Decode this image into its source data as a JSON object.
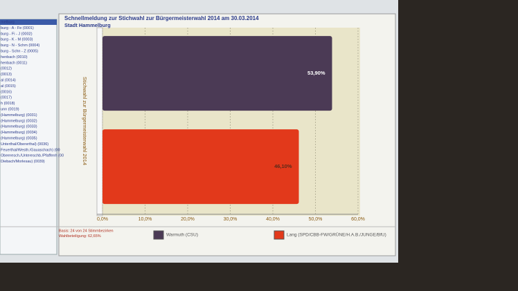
{
  "sidebar": {
    "items": [
      "melburg",
      "burg - A - Fe (0001)",
      "burg - Fi - J (0002)",
      "burg - K - M (0003)",
      "burg - N - Schm (0004)",
      "burg - Schn - Z (0005)",
      "henbach (0010)",
      "henbach (0011)",
      "(0012)",
      "(0013)",
      "al (0014)",
      "al (0015)",
      "(0016)",
      "(0017)",
      "h (0018)",
      "unn (0019)",
      "(Hammelburg) (0031)",
      "(Hammelburg) (0032)",
      "(Hammelburg) (0033)",
      "(Hammelburg) (0034)",
      "(Hammelburg) (0035)",
      "Unterthal/Obererthal) (0036)",
      "Feuerthal/Westh./Gauaschach) (00",
      "Obeeresch./Untereschb./Pfaffenh (00",
      "Diebach/Morlesau) (0039)"
    ]
  },
  "chart_data": {
    "type": "bar",
    "orientation": "horizontal",
    "title": "Schnellmeldung zur Stichwahl zur Bürgermeisterwahl 2014 am 30.03.2014",
    "subtitle": "Stadt Hammelburg",
    "y_label": "Stichwahl zur Bürgermeisterwahl 2014",
    "categories": [
      null
    ],
    "series": [
      {
        "name": "Warmuth (CSU)",
        "color": "#4b3a55",
        "values": [
          53.9
        ],
        "value_labels": [
          "53,90%"
        ]
      },
      {
        "name": "Lang (SPD/CBB-FW/GRÜNE/H.A.B./JUNGE/BfU)",
        "color": "#e2391b",
        "values": [
          46.1
        ],
        "value_labels": [
          "46,10%"
        ]
      }
    ],
    "xlim": [
      0,
      60
    ],
    "xticks": [
      {
        "value": 0,
        "label": "0,0%"
      },
      {
        "value": 10,
        "label": "10,0%"
      },
      {
        "value": 20,
        "label": "20,0%"
      },
      {
        "value": 30,
        "label": "30,0%"
      },
      {
        "value": 40,
        "label": "40,0%"
      },
      {
        "value": 50,
        "label": "50,0%"
      },
      {
        "value": 60,
        "label": "60,0%"
      }
    ],
    "grid": true,
    "footnotes": [
      "Basis: 24 von 24 Stimmbezirken",
      "Wahlbeteiligung: 62,65%"
    ]
  }
}
